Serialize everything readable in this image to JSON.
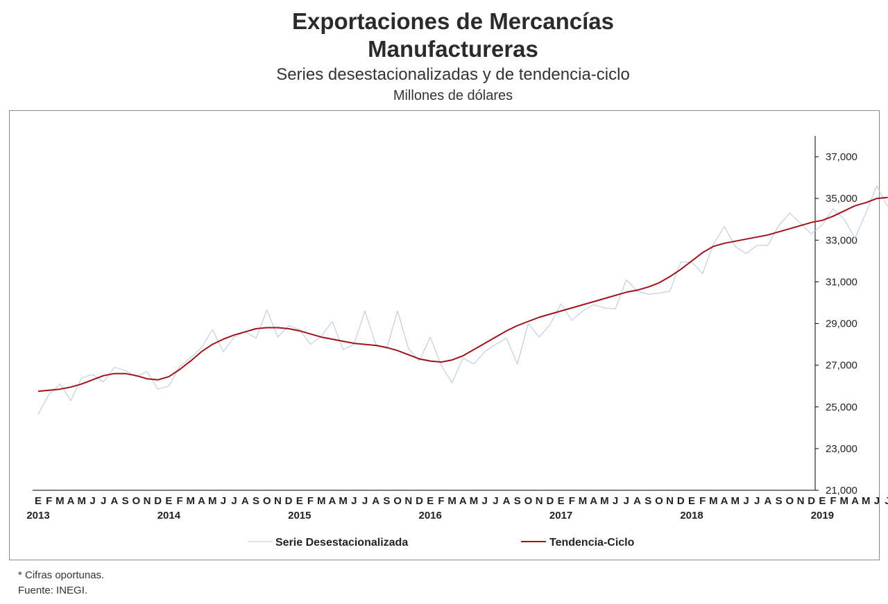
{
  "header": {
    "title_line1": "Exportaciones de Mercancías",
    "title_line2": "Manufactureras",
    "subtitle": "Series desestacionalizadas y de tendencia-ciclo",
    "units": "Millones de dólares"
  },
  "footer": {
    "note": "* Cifras oportunas.",
    "source": "Fuente: INEGI."
  },
  "chart_data": {
    "type": "line",
    "x_start": "2013-01",
    "x_end": "2019-06",
    "month_labels": [
      "E",
      "F",
      "M",
      "A",
      "M",
      "J",
      "J",
      "A",
      "S",
      "O",
      "N",
      "D"
    ],
    "last_month_marker": "*",
    "years": [
      "2013",
      "2014",
      "2015",
      "2016",
      "2017",
      "2018",
      "2019"
    ],
    "ylim": [
      21000,
      38000
    ],
    "yticks": [
      21000,
      23000,
      25000,
      27000,
      29000,
      31000,
      33000,
      35000,
      37000
    ],
    "ytick_labels": [
      "21,000",
      "23,000",
      "25,000",
      "27,000",
      "29,000",
      "31,000",
      "33,000",
      "35,000",
      "37,000"
    ],
    "y_axis_position": "right",
    "grid": false,
    "legend_position": "bottom",
    "series": [
      {
        "name": "Serie Desestacionalizada",
        "color": "#b4c7dc",
        "values": [
          24650,
          25600,
          26100,
          25300,
          26400,
          26550,
          26200,
          26900,
          26750,
          26450,
          26700,
          25850,
          26000,
          26950,
          27350,
          27850,
          28700,
          27650,
          28350,
          28600,
          28300,
          29650,
          28350,
          28900,
          28700,
          28000,
          28400,
          29100,
          27750,
          28000,
          29600,
          28000,
          27800,
          29600,
          27800,
          27200,
          28350,
          27000,
          26150,
          27350,
          27050,
          27650,
          28000,
          28300,
          27050,
          29000,
          28350,
          28950,
          29950,
          29150,
          29600,
          29900,
          29750,
          29700,
          31100,
          30550,
          30400,
          30450,
          30550,
          31950,
          31950,
          31400,
          32800,
          33650,
          32700,
          32350,
          32750,
          32750,
          33700,
          34300,
          33800,
          33300,
          33750,
          34500,
          34000,
          33100,
          34300,
          35600,
          34600
        ]
      },
      {
        "name": "Tendencia-Ciclo",
        "color": "#a0121b",
        "values": [
          25750,
          25800,
          25850,
          25950,
          26100,
          26300,
          26500,
          26600,
          26600,
          26500,
          26350,
          26300,
          26450,
          26800,
          27200,
          27650,
          28000,
          28250,
          28450,
          28600,
          28750,
          28800,
          28800,
          28750,
          28650,
          28500,
          28350,
          28250,
          28150,
          28050,
          28000,
          27950,
          27850,
          27700,
          27500,
          27300,
          27200,
          27150,
          27250,
          27450,
          27750,
          28050,
          28350,
          28650,
          28900,
          29100,
          29300,
          29450,
          29600,
          29750,
          29900,
          30050,
          30200,
          30350,
          30500,
          30600,
          30750,
          30950,
          31250,
          31600,
          32000,
          32400,
          32700,
          32850,
          32950,
          33050,
          33150,
          33250,
          33400,
          33550,
          33700,
          33850,
          33950,
          34150,
          34400,
          34650,
          34800,
          35000,
          35050
        ]
      }
    ]
  }
}
